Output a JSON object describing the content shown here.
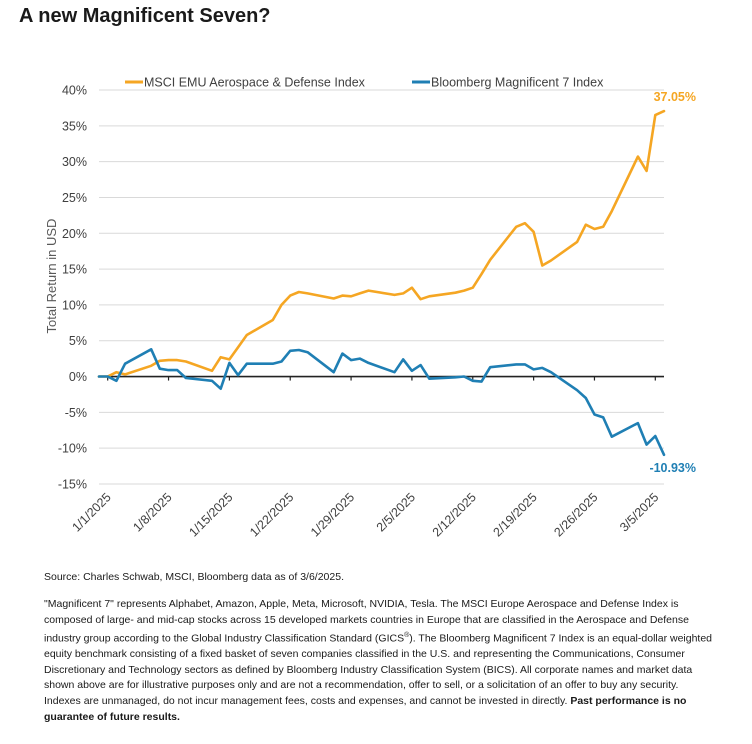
{
  "title": "A new Magnificent Seven?",
  "chart_data": {
    "type": "line",
    "ylabel": "Total Return in USD",
    "xlabel": "",
    "ylim": [
      -15,
      40
    ],
    "yticks": [
      40,
      35,
      30,
      25,
      20,
      15,
      10,
      5,
      0,
      -5,
      -10,
      -15
    ],
    "ytick_labels": [
      "40%",
      "35%",
      "30%",
      "25%",
      "20%",
      "15%",
      "10%",
      "5%",
      "0%",
      "-5%",
      "-10%",
      "-15%"
    ],
    "xlim": [
      "2024-12-31",
      "2025-03-06"
    ],
    "xticks": [
      "2025-01-01",
      "2025-01-08",
      "2025-01-15",
      "2025-01-22",
      "2025-01-29",
      "2025-02-05",
      "2025-02-12",
      "2025-02-19",
      "2025-02-26",
      "2025-03-05"
    ],
    "xtick_labels": [
      "1/1/2025",
      "1/8/2025",
      "1/15/2025",
      "1/22/2025",
      "1/29/2025",
      "2/5/2025",
      "2/12/2025",
      "2/19/2025",
      "2/26/2025",
      "3/5/2025"
    ],
    "grid": true,
    "legend_position": "top",
    "series": [
      {
        "name": "MSCI EMU Aerospace & Defense Index",
        "color": "#F5A623",
        "end_label": "37.05%",
        "x": [
          "2024-12-31",
          "2025-01-01",
          "2025-01-02",
          "2025-01-03",
          "2025-01-06",
          "2025-01-07",
          "2025-01-08",
          "2025-01-09",
          "2025-01-10",
          "2025-01-13",
          "2025-01-14",
          "2025-01-15",
          "2025-01-16",
          "2025-01-17",
          "2025-01-20",
          "2025-01-21",
          "2025-01-22",
          "2025-01-23",
          "2025-01-24",
          "2025-01-27",
          "2025-01-28",
          "2025-01-29",
          "2025-01-30",
          "2025-01-31",
          "2025-02-03",
          "2025-02-04",
          "2025-02-05",
          "2025-02-06",
          "2025-02-07",
          "2025-02-10",
          "2025-02-11",
          "2025-02-12",
          "2025-02-13",
          "2025-02-14",
          "2025-02-17",
          "2025-02-18",
          "2025-02-19",
          "2025-02-20",
          "2025-02-21",
          "2025-02-24",
          "2025-02-25",
          "2025-02-26",
          "2025-02-27",
          "2025-02-28",
          "2025-03-03",
          "2025-03-04",
          "2025-03-05",
          "2025-03-06"
        ],
        "values": [
          0.0,
          0.0,
          0.6,
          0.3,
          1.5,
          2.2,
          2.3,
          2.3,
          2.1,
          0.8,
          2.7,
          2.4,
          4.1,
          5.8,
          7.9,
          10.0,
          11.3,
          11.8,
          11.6,
          10.9,
          11.3,
          11.2,
          11.6,
          12.0,
          11.4,
          11.6,
          12.4,
          10.8,
          11.2,
          11.7,
          12.0,
          12.4,
          14.3,
          16.3,
          20.9,
          21.4,
          20.2,
          15.5,
          16.2,
          18.8,
          21.2,
          20.6,
          20.9,
          23.1,
          30.7,
          28.7,
          36.5,
          37.05
        ]
      },
      {
        "name": "Bloomberg Magnificent 7 Index",
        "color": "#1F7FB4",
        "end_label": "-10.93%",
        "x": [
          "2024-12-31",
          "2025-01-01",
          "2025-01-02",
          "2025-01-03",
          "2025-01-06",
          "2025-01-07",
          "2025-01-08",
          "2025-01-09",
          "2025-01-10",
          "2025-01-13",
          "2025-01-14",
          "2025-01-15",
          "2025-01-16",
          "2025-01-17",
          "2025-01-20",
          "2025-01-21",
          "2025-01-22",
          "2025-01-23",
          "2025-01-24",
          "2025-01-27",
          "2025-01-28",
          "2025-01-29",
          "2025-01-30",
          "2025-01-31",
          "2025-02-03",
          "2025-02-04",
          "2025-02-05",
          "2025-02-06",
          "2025-02-07",
          "2025-02-10",
          "2025-02-11",
          "2025-02-12",
          "2025-02-13",
          "2025-02-14",
          "2025-02-17",
          "2025-02-18",
          "2025-02-19",
          "2025-02-20",
          "2025-02-21",
          "2025-02-24",
          "2025-02-25",
          "2025-02-26",
          "2025-02-27",
          "2025-02-28",
          "2025-03-03",
          "2025-03-04",
          "2025-03-05",
          "2025-03-06"
        ],
        "values": [
          0.0,
          0.0,
          -0.6,
          1.8,
          3.8,
          1.1,
          0.9,
          0.9,
          -0.2,
          -0.6,
          -1.7,
          1.9,
          0.2,
          1.8,
          1.8,
          2.1,
          3.6,
          3.7,
          3.4,
          0.6,
          3.2,
          2.3,
          2.5,
          1.9,
          0.6,
          2.4,
          0.8,
          1.6,
          -0.3,
          -0.1,
          0.0,
          -0.6,
          -0.7,
          1.3,
          1.7,
          1.7,
          1.0,
          1.2,
          0.6,
          -1.9,
          -3.0,
          -5.3,
          -5.7,
          -8.4,
          -6.5,
          -9.5,
          -8.3,
          -10.93
        ]
      }
    ]
  },
  "footer": {
    "source": "Source: Charles Schwab, MSCI, Bloomberg data as of 3/6/2025.",
    "notes_part1": "\"Magnificent 7\" represents Alphabet, Amazon, Apple, Meta, Microsoft, NVIDIA, Tesla. The MSCI Europe Aerospace and Defense Index is composed of large- and mid-cap stocks across 15 developed markets countries in Europe that are classified in the Aerospace and Defense industry group according to the Global Industry Classification Standard (GICS",
    "notes_sup": "®",
    "notes_part2": "). The Bloomberg Magnificent 7 Index is an equal-dollar weighted equity benchmark consisting of a fixed basket of seven companies classified in the U.S. and representing the Communications, Consumer Discretionary and Technology sectors as defined by Bloomberg Industry Classification System (BICS). All corporate names and market data shown above are for illustrative purposes only and are not a recommendation, offer to sell, or a solicitation of an offer to buy any security. Indexes are unmanaged, do not incur management fees, costs and expenses, and cannot be invested in directly.",
    "notes_bold": "Past performance is no guarantee of future results."
  }
}
